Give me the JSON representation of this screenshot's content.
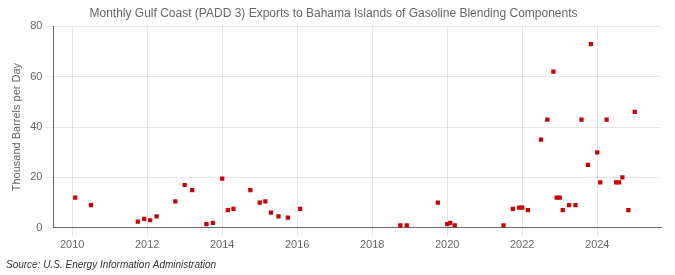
{
  "chart_data": {
    "type": "scatter",
    "title": "Monthly Gulf Coast (PADD 3) Exports to Bahama Islands of Gasoline Blending Components",
    "ylabel": "Thousand Barrels per Day",
    "annotations": [
      "Source: U.S. Energy Information Administration"
    ],
    "color": "#cc0000",
    "marker": "square",
    "grid": true,
    "xlim": [
      2009.5,
      2025.7
    ],
    "xticks": [
      2010,
      2012,
      2014,
      2016,
      2018,
      2020,
      2022,
      2024
    ],
    "ylim": [
      0,
      80
    ],
    "yticks": [
      0,
      20,
      40,
      60,
      80
    ],
    "x": [
      2010.08,
      2010.5,
      2011.75,
      2011.92,
      2012.08,
      2012.25,
      2012.75,
      2013.0,
      2013.2,
      2013.58,
      2013.75,
      2014.0,
      2014.15,
      2014.3,
      2014.75,
      2015.0,
      2015.15,
      2015.3,
      2015.5,
      2015.75,
      2016.08,
      2018.75,
      2018.92,
      2019.75,
      2020.0,
      2020.08,
      2020.2,
      2021.5,
      2021.75,
      2021.92,
      2022.0,
      2022.15,
      2022.5,
      2022.67,
      2022.83,
      2022.92,
      2023.0,
      2023.08,
      2023.25,
      2023.42,
      2023.58,
      2023.75,
      2023.83,
      2024.0,
      2024.08,
      2024.25,
      2024.5,
      2024.58,
      2024.67,
      2024.83,
      2025.0
    ],
    "values": [
      12,
      9,
      2.5,
      3.5,
      3,
      4.5,
      10.5,
      17,
      15,
      1.5,
      2,
      19.5,
      7,
      7.5,
      15,
      10,
      10.5,
      6,
      4.5,
      4,
      7.5,
      1,
      1,
      10,
      1.5,
      2,
      1,
      1,
      7.5,
      8,
      8,
      7,
      35,
      43,
      62,
      12,
      12,
      7,
      9,
      9,
      43,
      25,
      73,
      30,
      18,
      43,
      18,
      18,
      20,
      7,
      46
    ]
  }
}
